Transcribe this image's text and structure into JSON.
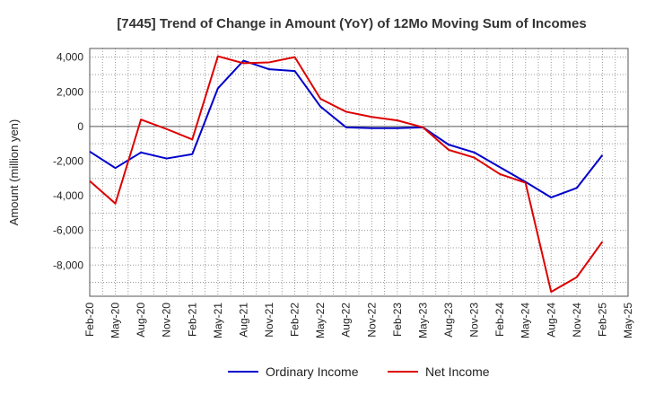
{
  "chart_data": {
    "type": "line",
    "title": "[7445]  Trend of Change in Amount (YoY) of 12Mo Moving Sum of Incomes",
    "xlabel": "",
    "ylabel": "Amount (million yen)",
    "ylim": [
      -9800,
      4500
    ],
    "yticks": [
      4000,
      2000,
      0,
      -2000,
      -4000,
      -6000,
      -8000
    ],
    "ytick_labels": [
      "4,000",
      "2,000",
      "0",
      "-2,000",
      "-4,000",
      "-6,000",
      "-8,000"
    ],
    "categories": [
      "Feb-20",
      "May-20",
      "Aug-20",
      "Nov-20",
      "Feb-21",
      "May-21",
      "Aug-21",
      "Nov-21",
      "Feb-22",
      "May-22",
      "Aug-22",
      "Nov-22",
      "Feb-23",
      "May-23",
      "Aug-23",
      "Nov-23",
      "Feb-24",
      "May-24",
      "Aug-24",
      "Nov-24",
      "Feb-25",
      "May-25"
    ],
    "grid": true,
    "legend_position": "bottom",
    "series": [
      {
        "name": "Ordinary Income",
        "color": "#0000cc",
        "values": [
          -1450,
          -2400,
          -1500,
          -1850,
          -1600,
          2200,
          3800,
          3300,
          3200,
          1150,
          -50,
          -100,
          -100,
          -50,
          -1050,
          -1500,
          -2350,
          -3200,
          -4100,
          -3550,
          -1650,
          null
        ]
      },
      {
        "name": "Net Income",
        "color": "#dd0000",
        "values": [
          -3150,
          -4450,
          400,
          -150,
          -750,
          4050,
          3650,
          3700,
          4000,
          1600,
          850,
          550,
          350,
          -50,
          -1350,
          -1800,
          -2750,
          -3250,
          -9550,
          -8700,
          -6650,
          null
        ]
      }
    ]
  }
}
